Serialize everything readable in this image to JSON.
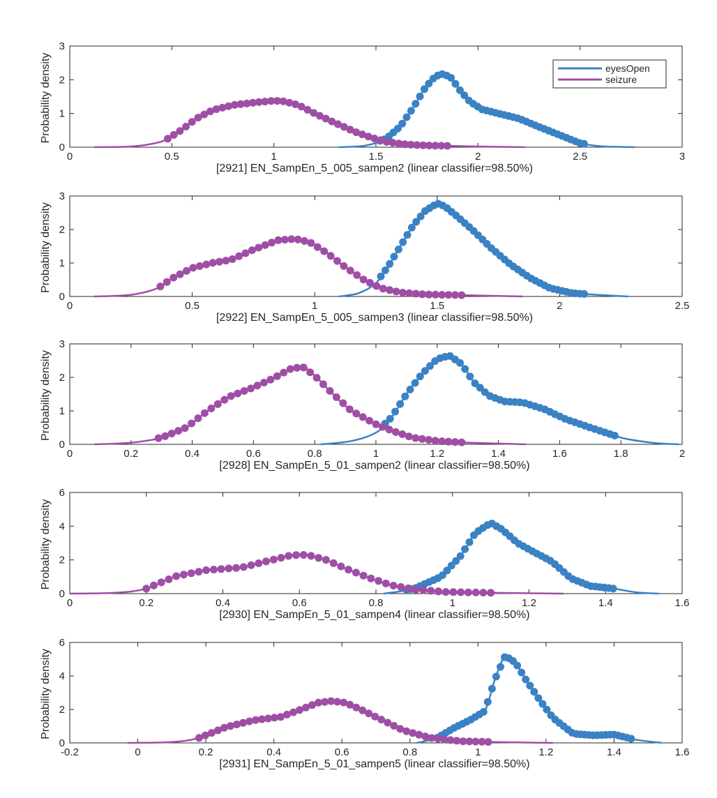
{
  "colors": {
    "eyesOpen": "#3b82c4",
    "seizure": "#9e4fa5",
    "axis": "#262626"
  },
  "legend": {
    "placement": "top-right",
    "entries": [
      "eyesOpen",
      "seizure"
    ]
  },
  "chart_data": [
    {
      "type": "line",
      "xlabel": "[2921] EN_SampEn_5_005_sampen2 (linear classifier=98.50%)",
      "ylabel": "Probability density",
      "xlim": [
        0,
        3
      ],
      "ylim": [
        0,
        3
      ],
      "xticks": [
        0,
        0.5,
        1,
        1.5,
        2,
        2.5,
        3
      ],
      "yticks": [
        0,
        1,
        2,
        3
      ],
      "show_legend": true,
      "series": [
        {
          "name": "eyesOpen",
          "x": [
            1.32,
            1.45,
            1.55,
            1.62,
            1.68,
            1.74,
            1.79,
            1.83,
            1.87,
            1.91,
            1.96,
            2.02,
            2.1,
            2.2,
            2.3,
            2.4,
            2.5,
            2.6,
            2.7,
            2.77
          ],
          "y": [
            0,
            0.05,
            0.25,
            0.62,
            1.15,
            1.75,
            2.1,
            2.18,
            2.05,
            1.7,
            1.35,
            1.12,
            1.0,
            0.85,
            0.6,
            0.36,
            0.12,
            0.03,
            0.01,
            0
          ],
          "markers": {
            "x_from": 1.52,
            "x_to": 2.52
          }
        },
        {
          "name": "seizure",
          "x": [
            0.12,
            0.3,
            0.42,
            0.48,
            0.55,
            0.62,
            0.7,
            0.8,
            0.9,
            1.0,
            1.05,
            1.12,
            1.2,
            1.3,
            1.4,
            1.48,
            1.55,
            1.65,
            1.75,
            1.85,
            2.0,
            2.23
          ],
          "y": [
            0,
            0.02,
            0.12,
            0.25,
            0.52,
            0.85,
            1.1,
            1.25,
            1.32,
            1.38,
            1.36,
            1.25,
            1.0,
            0.72,
            0.45,
            0.28,
            0.16,
            0.08,
            0.05,
            0.04,
            0.02,
            0
          ],
          "markers": {
            "x_from": 0.48,
            "x_to": 1.85
          }
        }
      ]
    },
    {
      "type": "line",
      "xlabel": "[2922] EN_SampEn_5_005_sampen3 (linear classifier=98.50%)",
      "ylabel": "Probability density",
      "xlim": [
        0,
        2.5
      ],
      "ylim": [
        0,
        3
      ],
      "xticks": [
        0,
        0.5,
        1,
        1.5,
        2,
        2.5
      ],
      "yticks": [
        0,
        1,
        2,
        3
      ],
      "show_legend": false,
      "series": [
        {
          "name": "eyesOpen",
          "x": [
            1.1,
            1.18,
            1.25,
            1.3,
            1.35,
            1.4,
            1.45,
            1.5,
            1.53,
            1.58,
            1.65,
            1.72,
            1.8,
            1.88,
            1.96,
            2.05,
            2.15,
            2.28
          ],
          "y": [
            0,
            0.1,
            0.4,
            0.9,
            1.5,
            2.1,
            2.55,
            2.78,
            2.7,
            2.4,
            1.95,
            1.45,
            0.95,
            0.55,
            0.25,
            0.1,
            0.05,
            0
          ],
          "markers": {
            "x_from": 1.27,
            "x_to": 2.1
          }
        },
        {
          "name": "seizure",
          "x": [
            0.1,
            0.25,
            0.36,
            0.42,
            0.5,
            0.58,
            0.66,
            0.75,
            0.85,
            0.92,
            0.98,
            1.05,
            1.12,
            1.2,
            1.27,
            1.35,
            1.45,
            1.6,
            1.85
          ],
          "y": [
            0,
            0.05,
            0.25,
            0.55,
            0.85,
            1.0,
            1.1,
            1.4,
            1.68,
            1.72,
            1.62,
            1.3,
            0.9,
            0.5,
            0.25,
            0.12,
            0.06,
            0.04,
            0
          ],
          "markers": {
            "x_from": 0.37,
            "x_to": 1.6
          }
        }
      ]
    },
    {
      "type": "line",
      "xlabel": "[2928] EN_SampEn_5_01_sampen2 (linear classifier=98.50%)",
      "ylabel": "Probability density",
      "xlim": [
        0,
        2
      ],
      "ylim": [
        0,
        3
      ],
      "xticks": [
        0,
        0.2,
        0.4,
        0.6,
        0.8,
        1,
        1.2,
        1.4,
        1.6,
        1.8,
        2
      ],
      "yticks": [
        0,
        1,
        2,
        3
      ],
      "show_legend": false,
      "series": [
        {
          "name": "eyesOpen",
          "x": [
            0.82,
            0.92,
            1.0,
            1.05,
            1.1,
            1.15,
            1.2,
            1.24,
            1.28,
            1.32,
            1.37,
            1.42,
            1.48,
            1.55,
            1.62,
            1.7,
            1.8,
            1.9,
            1.99
          ],
          "y": [
            0,
            0.1,
            0.35,
            0.8,
            1.5,
            2.1,
            2.55,
            2.65,
            2.4,
            1.85,
            1.45,
            1.28,
            1.25,
            1.05,
            0.75,
            0.5,
            0.2,
            0.05,
            0
          ],
          "markers": {
            "x_from": 1.03,
            "x_to": 1.78
          }
        },
        {
          "name": "seizure",
          "x": [
            0.08,
            0.2,
            0.3,
            0.38,
            0.45,
            0.52,
            0.6,
            0.66,
            0.72,
            0.76,
            0.8,
            0.86,
            0.92,
            1.0,
            1.06,
            1.12,
            1.2,
            1.3,
            1.49
          ],
          "y": [
            0,
            0.05,
            0.2,
            0.5,
            1.0,
            1.42,
            1.7,
            1.95,
            2.25,
            2.32,
            2.05,
            1.5,
            1.0,
            0.6,
            0.38,
            0.2,
            0.1,
            0.05,
            0
          ],
          "markers": {
            "x_from": 0.29,
            "x_to": 1.28
          }
        }
      ]
    },
    {
      "type": "line",
      "xlabel": "[2930] EN_SampEn_5_01_sampen4 (linear classifier=98.50%)",
      "ylabel": "Probability density",
      "xlim": [
        0,
        1.6
      ],
      "ylim": [
        0,
        6
      ],
      "xticks": [
        0,
        0.2,
        0.4,
        0.6,
        0.8,
        1,
        1.2,
        1.4,
        1.6
      ],
      "yticks": [
        0,
        2,
        4,
        6
      ],
      "show_legend": false,
      "series": [
        {
          "name": "eyesOpen",
          "x": [
            0.82,
            0.9,
            0.97,
            1.02,
            1.06,
            1.1,
            1.13,
            1.17,
            1.21,
            1.26,
            1.31,
            1.36,
            1.42,
            1.48,
            1.54
          ],
          "y": [
            0,
            0.3,
            1.0,
            2.2,
            3.6,
            4.2,
            3.8,
            3.0,
            2.5,
            1.9,
            0.9,
            0.45,
            0.3,
            0.08,
            0
          ],
          "markers": {
            "x_from": 0.88,
            "x_to": 1.42
          }
        },
        {
          "name": "seizure",
          "x": [
            0.0,
            0.12,
            0.2,
            0.28,
            0.36,
            0.45,
            0.52,
            0.58,
            0.62,
            0.67,
            0.72,
            0.78,
            0.84,
            0.9,
            0.98,
            1.1,
            1.29
          ],
          "y": [
            0,
            0.05,
            0.3,
            1.05,
            1.4,
            1.55,
            1.95,
            2.28,
            2.3,
            2.0,
            1.5,
            0.95,
            0.5,
            0.25,
            0.1,
            0.05,
            0
          ],
          "markers": {
            "x_from": 0.2,
            "x_to": 1.1
          }
        }
      ]
    },
    {
      "type": "line",
      "xlabel": "[2931] EN_SampEn_5_01_sampen5 (linear classifier=98.50%)",
      "ylabel": "Probability density",
      "xlim": [
        -0.2,
        1.6
      ],
      "ylim": [
        0,
        6
      ],
      "xticks": [
        -0.2,
        0,
        0.2,
        0.4,
        0.6,
        0.8,
        1,
        1.2,
        1.4,
        1.6
      ],
      "yticks": [
        0,
        2,
        4,
        6
      ],
      "show_legend": false,
      "series": [
        {
          "name": "eyesOpen",
          "x": [
            0.82,
            0.88,
            0.93,
            0.98,
            1.02,
            1.05,
            1.08,
            1.11,
            1.14,
            1.18,
            1.22,
            1.28,
            1.34,
            1.4,
            1.46,
            1.54
          ],
          "y": [
            0,
            0.3,
            0.9,
            1.4,
            1.9,
            3.8,
            5.2,
            4.8,
            3.8,
            2.6,
            1.5,
            0.55,
            0.45,
            0.5,
            0.2,
            0
          ],
          "markers": {
            "x_from": 0.88,
            "x_to": 1.45
          }
        },
        {
          "name": "seizure",
          "x": [
            -0.03,
            0.1,
            0.18,
            0.26,
            0.34,
            0.42,
            0.48,
            0.53,
            0.57,
            0.61,
            0.66,
            0.72,
            0.78,
            0.86,
            0.95,
            1.05,
            1.22
          ],
          "y": [
            0,
            0.05,
            0.3,
            0.95,
            1.35,
            1.55,
            2.0,
            2.4,
            2.5,
            2.4,
            1.95,
            1.35,
            0.75,
            0.3,
            0.1,
            0.05,
            0
          ],
          "markers": {
            "x_from": 0.18,
            "x_to": 1.03
          }
        }
      ]
    }
  ]
}
